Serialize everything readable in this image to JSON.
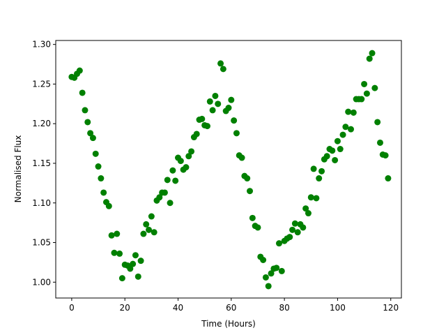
{
  "chart_data": {
    "type": "scatter",
    "title": "",
    "xlabel": "Time (Hours)",
    "ylabel": "Normalised Flux",
    "xlim": [
      -6,
      124
    ],
    "ylim": [
      0.98,
      1.305
    ],
    "xticks": [
      0,
      20,
      40,
      60,
      80,
      100,
      120
    ],
    "yticks": [
      1.0,
      1.05,
      1.1,
      1.15,
      1.2,
      1.25,
      1.3
    ],
    "xtick_labels": [
      "0",
      "20",
      "40",
      "60",
      "80",
      "100",
      "120"
    ],
    "ytick_labels": [
      "1.00",
      "1.05",
      "1.10",
      "1.15",
      "1.20",
      "1.25",
      "1.30"
    ],
    "grid": false,
    "legend": "none",
    "marker_color": "#008000",
    "series": [
      {
        "x": [
          0,
          1,
          2,
          3,
          4,
          5,
          6,
          7,
          8,
          9,
          10,
          11,
          12,
          13,
          14,
          15,
          16,
          17,
          18,
          19,
          20,
          21,
          22,
          23,
          24,
          25,
          26,
          27,
          28,
          29,
          30,
          31,
          32,
          33,
          34,
          35,
          36,
          37,
          38,
          39,
          40,
          41,
          42,
          43,
          44,
          45,
          46,
          47,
          48,
          49,
          50,
          51,
          52,
          53,
          54,
          55,
          56,
          57,
          58,
          59,
          60,
          61,
          62,
          63,
          64,
          65,
          66,
          67,
          68,
          69,
          70,
          71,
          72,
          73,
          74,
          75,
          76,
          77,
          78,
          79,
          80,
          81,
          82,
          83,
          84,
          85,
          86,
          87,
          88,
          89,
          90,
          91,
          92,
          93,
          94,
          95,
          96,
          97,
          98,
          99,
          100,
          101,
          102,
          103,
          104,
          105,
          106,
          107,
          108,
          109,
          110,
          111,
          112,
          113,
          114,
          115,
          116,
          117,
          118,
          119
        ],
        "y": [
          1.259,
          1.258,
          1.263,
          1.267,
          1.239,
          1.217,
          1.202,
          1.188,
          1.182,
          1.162,
          1.146,
          1.131,
          1.113,
          1.101,
          1.096,
          1.059,
          1.037,
          1.061,
          1.036,
          1.005,
          1.022,
          1.021,
          1.017,
          1.023,
          1.034,
          1.007,
          1.027,
          1.061,
          1.073,
          1.066,
          1.083,
          1.063,
          1.103,
          1.107,
          1.113,
          1.113,
          1.129,
          1.1,
          1.141,
          1.128,
          1.157,
          1.153,
          1.142,
          1.145,
          1.159,
          1.165,
          1.183,
          1.187,
          1.205,
          1.206,
          1.198,
          1.197,
          1.228,
          1.217,
          1.235,
          1.225,
          1.276,
          1.269,
          1.216,
          1.22,
          1.23,
          1.204,
          1.188,
          1.16,
          1.157,
          1.134,
          1.131,
          1.115,
          1.081,
          1.071,
          1.069,
          1.032,
          1.028,
          1.006,
          0.995,
          1.011,
          1.017,
          1.018,
          1.049,
          1.014,
          1.052,
          1.055,
          1.057,
          1.066,
          1.074,
          1.063,
          1.073,
          1.069,
          1.093,
          1.087,
          1.107,
          1.143,
          1.106,
          1.131,
          1.14,
          1.155,
          1.159,
          1.168,
          1.166,
          1.154,
          1.178,
          1.168,
          1.186,
          1.196,
          1.215,
          1.193,
          1.214,
          1.231,
          1.231,
          1.231,
          1.25,
          1.238,
          1.282,
          1.289,
          1.245,
          1.202,
          1.176,
          1.161,
          1.16,
          1.131
        ]
      }
    ]
  }
}
